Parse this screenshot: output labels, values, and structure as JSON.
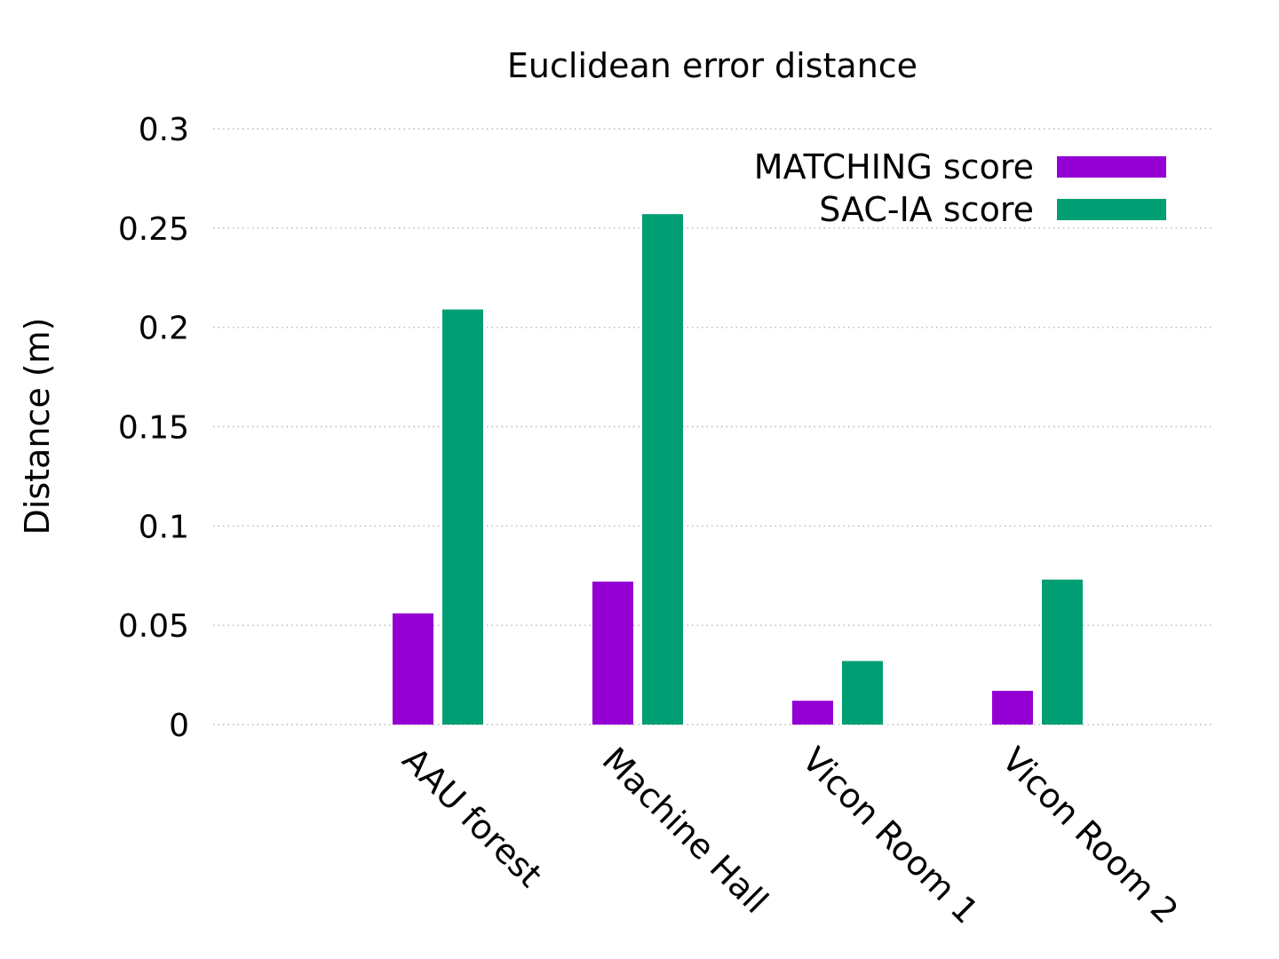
{
  "chart_data": {
    "type": "bar",
    "title": "Euclidean error distance",
    "xlabel": "",
    "ylabel": "Distance (m)",
    "categories": [
      "AAU forest",
      "Machine Hall",
      "Vicon Room 1",
      "Vicon Room 2"
    ],
    "series": [
      {
        "name": "MATCHING score",
        "color": "#9400d3",
        "values": [
          0.056,
          0.072,
          0.012,
          0.017
        ]
      },
      {
        "name": "SAC-IA score",
        "color": "#009e73",
        "values": [
          0.209,
          0.257,
          0.032,
          0.073
        ]
      }
    ],
    "ylim": [
      0,
      0.3
    ],
    "yticks": [
      0,
      0.05,
      0.1,
      0.15,
      0.2,
      0.25,
      0.3
    ],
    "ytick_labels": [
      "0",
      "0.05",
      "0.1",
      "0.15",
      "0.2",
      "0.25",
      "0.3"
    ],
    "grid": true,
    "legend_position": "top-right"
  }
}
